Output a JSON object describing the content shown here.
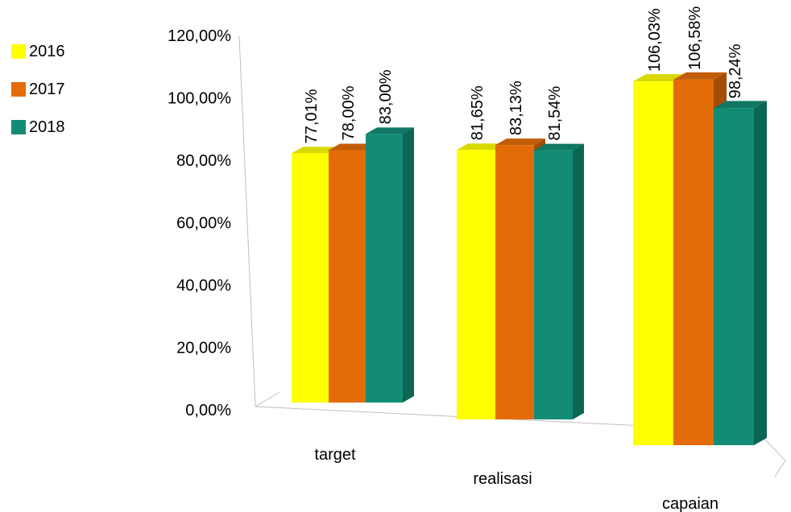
{
  "chart_data": {
    "type": "bar",
    "title": "",
    "xlabel": "",
    "ylabel": "",
    "categories": [
      "target",
      "realisasi",
      "capaian"
    ],
    "series": [
      {
        "name": "2016",
        "values": [
          77.01,
          81.65,
          106.03
        ],
        "labels": [
          "77,01%",
          "81,65%",
          "106,03%"
        ],
        "color": "#FFFF00"
      },
      {
        "name": "2017",
        "values": [
          78.0,
          83.13,
          106.58
        ],
        "labels": [
          "78,00%",
          "83,13%",
          "106,58%"
        ],
        "color": "#E36C09"
      },
      {
        "name": "2018",
        "values": [
          83.0,
          81.54,
          98.24
        ],
        "labels": [
          "83,00%",
          "81,54%",
          "98,24%"
        ],
        "color": "#128C75"
      }
    ],
    "y_ticks": [
      "0,00%",
      "20,00%",
      "40,00%",
      "60,00%",
      "80,00%",
      "100,00%",
      "120,00%"
    ],
    "ylim": [
      0,
      120
    ],
    "grid": false,
    "legend_position": "top-left",
    "style": "3d-clustered-column"
  }
}
